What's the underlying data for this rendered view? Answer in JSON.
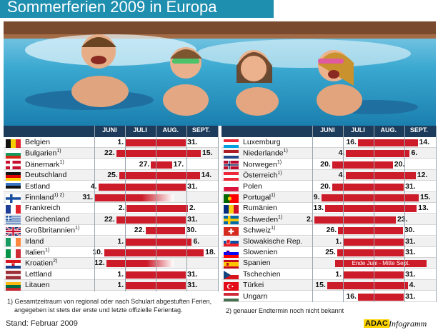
{
  "title": "Sommerferien 2009 in Europa",
  "months": [
    "JUNI",
    "JULI",
    "AUG.",
    "SEPT."
  ],
  "chart_data": {
    "type": "bar",
    "subtype": "gantt",
    "title": "Sommerferien 2009 in Europa",
    "x_months": [
      "JUNI",
      "JULI",
      "AUG.",
      "SEPT."
    ],
    "left": [
      {
        "country": "Belgien",
        "note": "",
        "start": "1.",
        "end": "31.",
        "s": 31,
        "e": 92,
        "flag": "be"
      },
      {
        "country": "Bulgarien",
        "note": "1)",
        "start": "22.",
        "end": "15.",
        "s": 22,
        "e": 107,
        "flag": "bg"
      },
      {
        "country": "Dänemark",
        "note": "1)",
        "start": "27.",
        "end": "17.",
        "s": 57,
        "e": 78,
        "flag": "dk"
      },
      {
        "country": "Deutschland",
        "note": "",
        "start": "25.",
        "end": "14.",
        "s": 25,
        "e": 106,
        "flag": "de"
      },
      {
        "country": "Estland",
        "note": "",
        "start": "4.",
        "end": "31.",
        "s": 4,
        "e": 92,
        "flag": "ee"
      },
      {
        "country": "Finnland",
        "note": "1) 2)",
        "start": "31.",
        "end": "",
        "s": 0,
        "e": 80,
        "flag": "fi",
        "fade": true
      },
      {
        "country": "Frankreich",
        "note": "",
        "start": "2.",
        "end": "2.",
        "s": 32,
        "e": 94,
        "flag": "fr"
      },
      {
        "country": "Griechenland",
        "note": "",
        "start": "22.",
        "end": "31.",
        "s": 22,
        "e": 92,
        "flag": "gr"
      },
      {
        "country": "Großbritannien",
        "note": "1)",
        "start": "22.",
        "end": "30.",
        "s": 52,
        "e": 91,
        "flag": "gb"
      },
      {
        "country": "Irland",
        "note": "",
        "start": "1.",
        "end": "6.",
        "s": 31,
        "e": 98,
        "flag": "ie"
      },
      {
        "country": "Italien",
        "note": "1)",
        "start": "10.",
        "end": "18.",
        "s": 10,
        "e": 110,
        "flag": "it"
      },
      {
        "country": "Kroatien",
        "note": "2)",
        "start": "12.",
        "end": "",
        "s": 12,
        "e": 80,
        "flag": "hr",
        "fade": true
      },
      {
        "country": "Lettland",
        "note": "",
        "start": "1.",
        "end": "31.",
        "s": 31,
        "e": 92,
        "flag": "lv"
      },
      {
        "country": "Litauen",
        "note": "",
        "start": "1.",
        "end": "31.",
        "s": 31,
        "e": 92,
        "flag": "lt"
      }
    ],
    "right": [
      {
        "country": "Luxemburg",
        "note": "",
        "start": "16.",
        "end": "14.",
        "s": 46,
        "e": 106,
        "flag": "lu"
      },
      {
        "country": "Niederlande",
        "note": "1)",
        "start": "4.",
        "end": "6.",
        "s": 34,
        "e": 98,
        "flag": "nl"
      },
      {
        "country": "Norwegen",
        "note": "1)",
        "start": "20.",
        "end": "20.",
        "s": 20,
        "e": 81,
        "flag": "no"
      },
      {
        "country": "Österreich",
        "note": "1)",
        "start": "4.",
        "end": "12.",
        "s": 34,
        "e": 104,
        "flag": "at"
      },
      {
        "country": "Polen",
        "note": "",
        "start": "20.",
        "end": "31.",
        "s": 20,
        "e": 92,
        "flag": "pl"
      },
      {
        "country": "Portugal",
        "note": "1)",
        "start": "9.",
        "end": "15.",
        "s": 9,
        "e": 107,
        "flag": "pt"
      },
      {
        "country": "Rumänien",
        "note": "",
        "start": "13.",
        "end": "13.",
        "s": 13,
        "e": 105,
        "flag": "ro"
      },
      {
        "country": "Schweden",
        "note": "1)",
        "start": "2.",
        "end": "23.",
        "s": 2,
        "e": 84,
        "flag": "se"
      },
      {
        "country": "Schweiz",
        "note": "1)",
        "start": "26.",
        "end": "30.",
        "s": 26,
        "e": 91,
        "flag": "ch"
      },
      {
        "country": "Slowakische Rep.",
        "note": "",
        "start": "1.",
        "end": "31.",
        "s": 31,
        "e": 92,
        "flag": "sk"
      },
      {
        "country": "Slowenien",
        "note": "",
        "start": "25.",
        "end": "31.",
        "s": 25,
        "e": 92,
        "flag": "si"
      },
      {
        "country": "Spanien",
        "note": "",
        "start": "",
        "end": "",
        "s": 23,
        "e": 115,
        "flag": "es",
        "bar_text": "Ende Juni - Mitte Sept."
      },
      {
        "country": "Tschechien",
        "note": "",
        "start": "1.",
        "end": "31.",
        "s": 31,
        "e": 92,
        "flag": "cz"
      },
      {
        "country": "Türkei",
        "note": "",
        "start": "15.",
        "end": "4.",
        "s": 15,
        "e": 96,
        "flag": "tr"
      },
      {
        "country": "Ungarn",
        "note": "",
        "start": "16.",
        "end": "31.",
        "s": 46,
        "e": 92,
        "flag": "hu"
      }
    ]
  },
  "footnotes": {
    "one_line1": "1) Gesamtzeitraum von regional oder nach Schulart abgestuften Ferien,",
    "one_line2": "angegeben ist stets der erste und letzte offizielle Ferientag.",
    "two": "2) genauer Endtermin noch nicht bekannt"
  },
  "stand": "Stand: Februar 2009",
  "logo": {
    "adac": "ADAC",
    "info": "Infogramm"
  },
  "colors": {
    "bar": "#cc1c2a",
    "header": "#1d3b5a",
    "title": "#1f8fb0"
  }
}
